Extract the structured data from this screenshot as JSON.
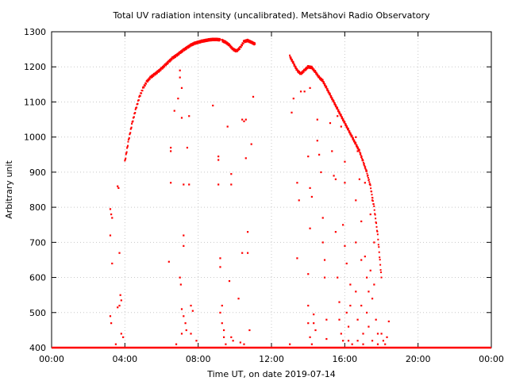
{
  "chart_data": {
    "type": "scatter",
    "title": "Total UV radiation intensity (uncalibrated). Metsähovi Radio Observatory",
    "xlabel": "Time UT, on date 2019-07-14",
    "ylabel": "Arbitrary unit",
    "xlim": [
      0,
      24
    ],
    "ylim": [
      400,
      1300
    ],
    "xticks": [
      0,
      4,
      8,
      12,
      16,
      20,
      24
    ],
    "xtick_labels": [
      "00:00",
      "04:00",
      "08:00",
      "12:00",
      "16:00",
      "20:00",
      "00:00"
    ],
    "yticks": [
      400,
      500,
      600,
      700,
      800,
      900,
      1000,
      1100,
      1200,
      1300
    ],
    "ytick_labels": [
      "400",
      "500",
      "600",
      "700",
      "800",
      "900",
      "1000",
      "1100",
      "1200",
      "1300"
    ],
    "grid": true,
    "point_color": "#ff0000",
    "baseline": {
      "y": 400,
      "x_start": 0,
      "x_end": 24
    },
    "curve_segments": [
      {
        "x": [
          4.0,
          4.2,
          4.4,
          4.6,
          4.8,
          5.0,
          5.2,
          5.4,
          5.6,
          5.8,
          6.0,
          6.2,
          6.4,
          6.6,
          6.8,
          7.0,
          7.2,
          7.4,
          7.6,
          7.8,
          8.0,
          8.2,
          8.4,
          8.6,
          8.8,
          9.0,
          9.2
        ],
        "y": [
          930,
          990,
          1040,
          1080,
          1115,
          1140,
          1158,
          1170,
          1178,
          1186,
          1195,
          1205,
          1215,
          1225,
          1232,
          1240,
          1248,
          1255,
          1262,
          1267,
          1270,
          1273,
          1275,
          1277,
          1278,
          1278,
          1277
        ]
      },
      {
        "x": [
          9.3,
          9.5,
          9.7,
          9.9,
          10.1,
          10.3,
          10.5,
          10.7,
          10.9,
          11.1
        ],
        "y": [
          1275,
          1270,
          1262,
          1250,
          1245,
          1255,
          1272,
          1275,
          1270,
          1265
        ]
      },
      {
        "x": [
          13.0,
          13.2,
          13.4,
          13.6,
          13.8,
          14.0,
          14.2,
          14.4,
          14.6,
          14.8,
          15.0,
          15.2,
          15.4,
          15.6,
          15.8,
          16.0,
          16.2,
          16.4,
          16.6,
          16.8,
          17.0,
          17.2,
          17.4,
          17.6,
          17.8,
          18.0
        ],
        "y": [
          1230,
          1210,
          1190,
          1180,
          1190,
          1200,
          1198,
          1185,
          1170,
          1160,
          1140,
          1120,
          1100,
          1080,
          1060,
          1040,
          1020,
          1000,
          980,
          960,
          930,
          900,
          860,
          800,
          720,
          600
        ]
      }
    ],
    "points": [
      {
        "x": 3.2,
        "y": 795
      },
      {
        "x": 3.25,
        "y": 780
      },
      {
        "x": 3.3,
        "y": 770
      },
      {
        "x": 3.2,
        "y": 720
      },
      {
        "x": 3.3,
        "y": 640
      },
      {
        "x": 3.6,
        "y": 860
      },
      {
        "x": 3.65,
        "y": 855
      },
      {
        "x": 3.7,
        "y": 670
      },
      {
        "x": 3.75,
        "y": 550
      },
      {
        "x": 3.8,
        "y": 535
      },
      {
        "x": 3.7,
        "y": 520
      },
      {
        "x": 3.6,
        "y": 515
      },
      {
        "x": 3.2,
        "y": 490
      },
      {
        "x": 3.25,
        "y": 470
      },
      {
        "x": 3.5,
        "y": 410
      },
      {
        "x": 3.8,
        "y": 440
      },
      {
        "x": 3.9,
        "y": 430
      },
      {
        "x": 6.5,
        "y": 970
      },
      {
        "x": 6.5,
        "y": 960
      },
      {
        "x": 6.5,
        "y": 870
      },
      {
        "x": 6.4,
        "y": 645
      },
      {
        "x": 6.7,
        "y": 1075
      },
      {
        "x": 6.9,
        "y": 1110
      },
      {
        "x": 7.0,
        "y": 1190
      },
      {
        "x": 7.0,
        "y": 1170
      },
      {
        "x": 7.1,
        "y": 1140
      },
      {
        "x": 7.1,
        "y": 1055
      },
      {
        "x": 7.2,
        "y": 865
      },
      {
        "x": 7.2,
        "y": 720
      },
      {
        "x": 7.2,
        "y": 690
      },
      {
        "x": 7.0,
        "y": 600
      },
      {
        "x": 7.05,
        "y": 580
      },
      {
        "x": 7.1,
        "y": 510
      },
      {
        "x": 7.2,
        "y": 490
      },
      {
        "x": 7.3,
        "y": 470
      },
      {
        "x": 7.35,
        "y": 450
      },
      {
        "x": 7.1,
        "y": 440
      },
      {
        "x": 7.4,
        "y": 970
      },
      {
        "x": 7.5,
        "y": 1060
      },
      {
        "x": 7.5,
        "y": 865
      },
      {
        "x": 7.6,
        "y": 520
      },
      {
        "x": 7.7,
        "y": 505
      },
      {
        "x": 7.6,
        "y": 440
      },
      {
        "x": 6.8,
        "y": 410
      },
      {
        "x": 7.9,
        "y": 420
      },
      {
        "x": 8.8,
        "y": 1090
      },
      {
        "x": 9.1,
        "y": 945
      },
      {
        "x": 9.1,
        "y": 935
      },
      {
        "x": 9.1,
        "y": 865
      },
      {
        "x": 9.2,
        "y": 655
      },
      {
        "x": 9.2,
        "y": 630
      },
      {
        "x": 9.3,
        "y": 520
      },
      {
        "x": 9.2,
        "y": 500
      },
      {
        "x": 9.3,
        "y": 470
      },
      {
        "x": 9.4,
        "y": 450
      },
      {
        "x": 9.4,
        "y": 430
      },
      {
        "x": 9.5,
        "y": 410
      },
      {
        "x": 9.6,
        "y": 1030
      },
      {
        "x": 9.8,
        "y": 895
      },
      {
        "x": 9.8,
        "y": 865
      },
      {
        "x": 9.7,
        "y": 590
      },
      {
        "x": 9.8,
        "y": 430
      },
      {
        "x": 9.9,
        "y": 420
      },
      {
        "x": 10.2,
        "y": 540
      },
      {
        "x": 10.3,
        "y": 415
      },
      {
        "x": 10.4,
        "y": 1050
      },
      {
        "x": 10.4,
        "y": 670
      },
      {
        "x": 10.5,
        "y": 1045
      },
      {
        "x": 10.5,
        "y": 410
      },
      {
        "x": 10.6,
        "y": 940
      },
      {
        "x": 10.7,
        "y": 730
      },
      {
        "x": 10.7,
        "y": 670
      },
      {
        "x": 10.8,
        "y": 450
      },
      {
        "x": 10.9,
        "y": 980
      },
      {
        "x": 11.0,
        "y": 1115
      },
      {
        "x": 10.6,
        "y": 1050
      },
      {
        "x": 13.1,
        "y": 1070
      },
      {
        "x": 13.2,
        "y": 1110
      },
      {
        "x": 13.4,
        "y": 870
      },
      {
        "x": 13.5,
        "y": 820
      },
      {
        "x": 13.4,
        "y": 655
      },
      {
        "x": 13.0,
        "y": 410
      },
      {
        "x": 13.6,
        "y": 1130
      },
      {
        "x": 13.8,
        "y": 1130
      },
      {
        "x": 14.1,
        "y": 1140
      },
      {
        "x": 14.0,
        "y": 945
      },
      {
        "x": 14.1,
        "y": 855
      },
      {
        "x": 14.2,
        "y": 830
      },
      {
        "x": 14.1,
        "y": 740
      },
      {
        "x": 14.0,
        "y": 610
      },
      {
        "x": 14.0,
        "y": 520
      },
      {
        "x": 14.0,
        "y": 470
      },
      {
        "x": 14.1,
        "y": 430
      },
      {
        "x": 14.2,
        "y": 410
      },
      {
        "x": 14.3,
        "y": 495
      },
      {
        "x": 14.3,
        "y": 470
      },
      {
        "x": 14.4,
        "y": 450
      },
      {
        "x": 14.5,
        "y": 1050
      },
      {
        "x": 14.5,
        "y": 990
      },
      {
        "x": 14.6,
        "y": 950
      },
      {
        "x": 14.7,
        "y": 900
      },
      {
        "x": 14.8,
        "y": 770
      },
      {
        "x": 14.8,
        "y": 700
      },
      {
        "x": 14.9,
        "y": 650
      },
      {
        "x": 14.9,
        "y": 600
      },
      {
        "x": 15.0,
        "y": 480
      },
      {
        "x": 15.0,
        "y": 425
      },
      {
        "x": 15.2,
        "y": 1040
      },
      {
        "x": 15.3,
        "y": 960
      },
      {
        "x": 15.4,
        "y": 890
      },
      {
        "x": 15.5,
        "y": 880
      },
      {
        "x": 15.5,
        "y": 730
      },
      {
        "x": 15.6,
        "y": 1060
      },
      {
        "x": 15.6,
        "y": 600
      },
      {
        "x": 15.7,
        "y": 530
      },
      {
        "x": 15.7,
        "y": 480
      },
      {
        "x": 15.8,
        "y": 1030
      },
      {
        "x": 15.8,
        "y": 440
      },
      {
        "x": 15.9,
        "y": 420
      },
      {
        "x": 15.9,
        "y": 750
      },
      {
        "x": 16.0,
        "y": 930
      },
      {
        "x": 16.0,
        "y": 870
      },
      {
        "x": 16.0,
        "y": 690
      },
      {
        "x": 16.1,
        "y": 640
      },
      {
        "x": 16.1,
        "y": 500
      },
      {
        "x": 16.2,
        "y": 460
      },
      {
        "x": 16.2,
        "y": 420
      },
      {
        "x": 16.3,
        "y": 580
      },
      {
        "x": 16.3,
        "y": 520
      },
      {
        "x": 16.4,
        "y": 410
      },
      {
        "x": 16.6,
        "y": 1000
      },
      {
        "x": 16.7,
        "y": 960
      },
      {
        "x": 16.6,
        "y": 820
      },
      {
        "x": 16.6,
        "y": 700
      },
      {
        "x": 16.6,
        "y": 560
      },
      {
        "x": 16.7,
        "y": 480
      },
      {
        "x": 16.7,
        "y": 420
      },
      {
        "x": 16.8,
        "y": 880
      },
      {
        "x": 16.9,
        "y": 760
      },
      {
        "x": 16.9,
        "y": 650
      },
      {
        "x": 16.9,
        "y": 520
      },
      {
        "x": 17.0,
        "y": 440
      },
      {
        "x": 17.0,
        "y": 410
      },
      {
        "x": 17.1,
        "y": 870
      },
      {
        "x": 17.1,
        "y": 660
      },
      {
        "x": 17.2,
        "y": 600
      },
      {
        "x": 17.2,
        "y": 500
      },
      {
        "x": 17.3,
        "y": 560
      },
      {
        "x": 17.3,
        "y": 460
      },
      {
        "x": 17.4,
        "y": 780
      },
      {
        "x": 17.4,
        "y": 620
      },
      {
        "x": 17.5,
        "y": 820
      },
      {
        "x": 17.5,
        "y": 540
      },
      {
        "x": 17.6,
        "y": 700
      },
      {
        "x": 17.6,
        "y": 580
      },
      {
        "x": 17.7,
        "y": 480
      },
      {
        "x": 17.5,
        "y": 420
      },
      {
        "x": 17.8,
        "y": 440
      },
      {
        "x": 17.8,
        "y": 410
      },
      {
        "x": 18.0,
        "y": 440
      },
      {
        "x": 18.1,
        "y": 420
      },
      {
        "x": 18.2,
        "y": 410
      },
      {
        "x": 18.3,
        "y": 430
      },
      {
        "x": 18.4,
        "y": 475
      }
    ]
  }
}
